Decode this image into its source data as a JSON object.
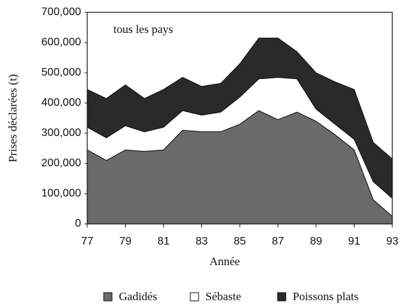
{
  "chart_data": {
    "type": "stacked_area",
    "annotation": "tous les pays",
    "x_label": "Année",
    "y_label": "Prises déclarées (t)",
    "x": [
      77,
      78,
      79,
      80,
      81,
      82,
      83,
      84,
      85,
      86,
      87,
      88,
      89,
      90,
      91,
      92,
      93
    ],
    "series": [
      {
        "name": "Gadidés",
        "color": "#6a6a6a",
        "values": [
          245000,
          210000,
          245000,
          240000,
          245000,
          310000,
          305000,
          305000,
          330000,
          375000,
          345000,
          370000,
          340000,
          295000,
          245000,
          80000,
          25000
        ]
      },
      {
        "name": "Sébaste",
        "color": "#ffffff",
        "values": [
          75000,
          75000,
          80000,
          65000,
          75000,
          65000,
          55000,
          65000,
          90000,
          105000,
          140000,
          110000,
          40000,
          35000,
          35000,
          60000,
          60000
        ]
      },
      {
        "name": "Poissons plats",
        "color": "#2a2a2a",
        "values": [
          125000,
          130000,
          135000,
          110000,
          125000,
          110000,
          95000,
          95000,
          110000,
          135000,
          130000,
          90000,
          120000,
          140000,
          165000,
          130000,
          130000
        ]
      }
    ],
    "xlim": [
      77,
      93
    ],
    "xticks": [
      77,
      79,
      81,
      83,
      85,
      87,
      89,
      91,
      93
    ],
    "ylim": [
      0,
      700000
    ],
    "yticks": [
      0,
      {
        "value": 100000,
        "label": "100,000"
      },
      {
        "value": 200000,
        "label": "200,000"
      },
      {
        "value": 300000,
        "label": "300,000"
      },
      {
        "value": 400000,
        "label": "400,000"
      },
      {
        "value": 500000,
        "label": "500,000"
      },
      {
        "value": 600000,
        "label": "600,000"
      },
      {
        "value": 700000,
        "label": "700,000"
      }
    ]
  }
}
